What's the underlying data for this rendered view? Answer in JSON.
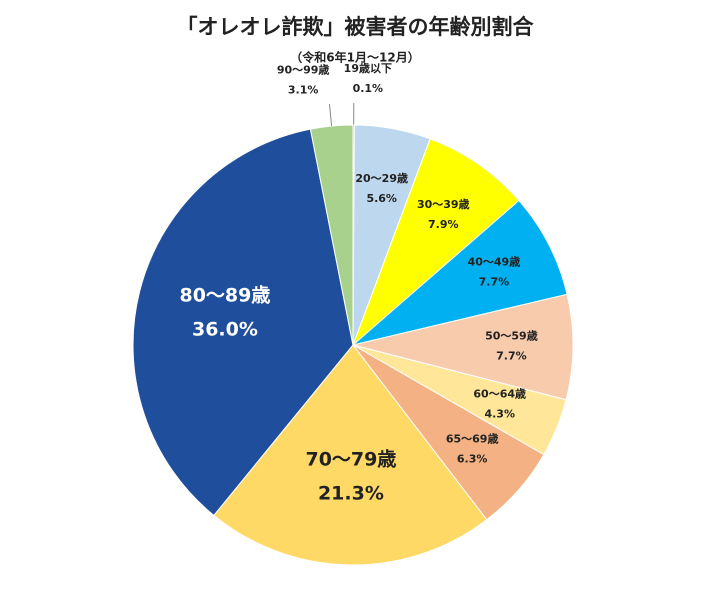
{
  "chart_data": {
    "type": "pie",
    "title": "「オレオレ詐欺」被害者の年齢別割合",
    "subtitle": "（令和6年1月～12月）",
    "categories": [
      "19歳以下",
      "20～29歳",
      "30～39歳",
      "40～49歳",
      "50～59歳",
      "60～64歳",
      "65～69歳",
      "70～79歳",
      "80～89歳",
      "90～99歳"
    ],
    "values": [
      0.1,
      5.6,
      7.9,
      7.7,
      7.7,
      4.3,
      6.3,
      21.3,
      36.0,
      3.1
    ],
    "value_labels": [
      "0.1%",
      "5.6%",
      "7.9%",
      "7.7%",
      "7.7%",
      "4.3%",
      "6.3%",
      "21.3%",
      "36.0%",
      "3.1%"
    ],
    "colors": [
      "#ed7d31",
      "#bdd7ee",
      "#ffff00",
      "#00b0f0",
      "#f8cbad",
      "#ffe699",
      "#f4b183",
      "#ffd966",
      "#1f4e9c",
      "#a9d18e"
    ]
  }
}
